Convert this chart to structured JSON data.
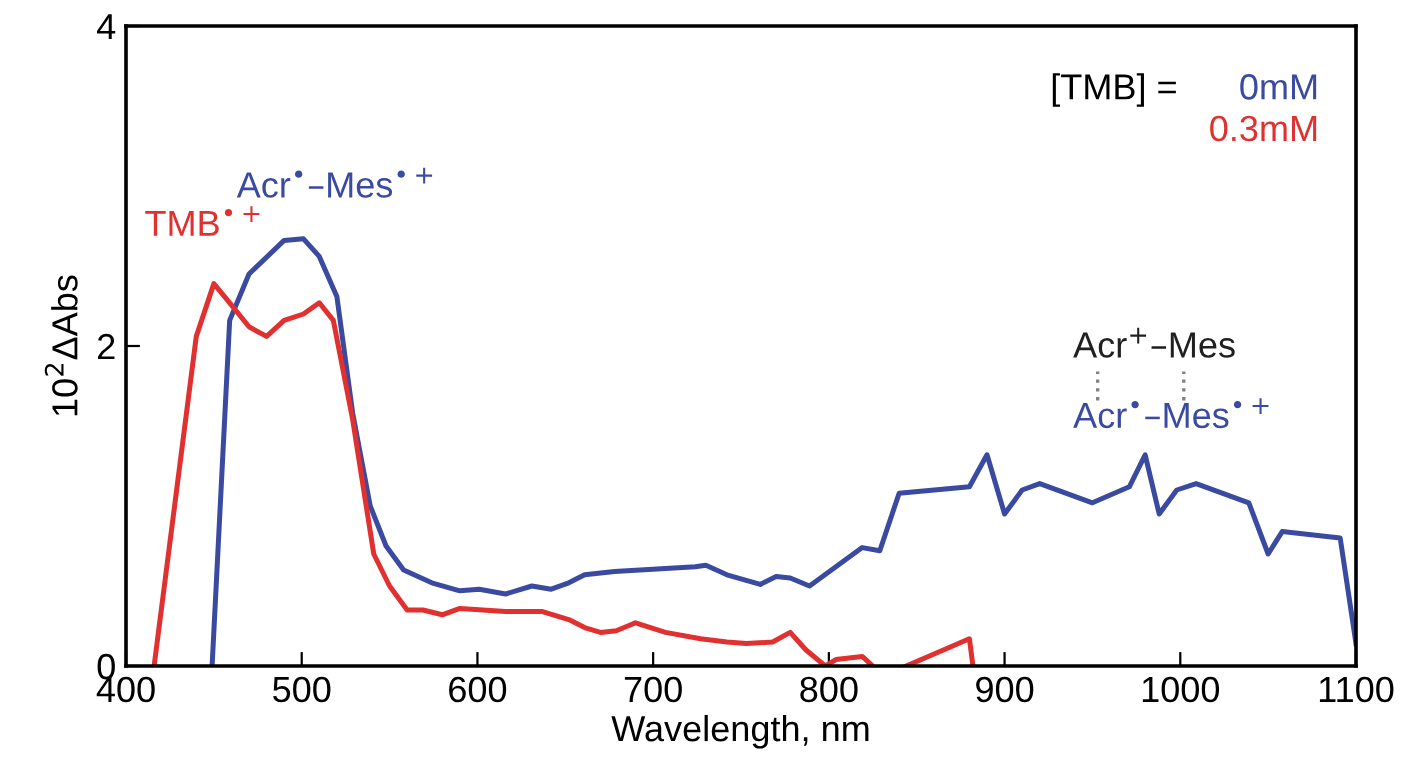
{
  "chart_data": {
    "type": "line",
    "xlabel": "Wavelength, nm",
    "ylabel": "10$^{2}$ΔAbs",
    "xlim": [
      400,
      1100
    ],
    "xticks": [
      400,
      500,
      600,
      700,
      800,
      900,
      1000,
      1100
    ],
    "ylim": [
      0,
      4
    ],
    "yticks": [
      0,
      2,
      4
    ],
    "grid": false,
    "legend": "top right",
    "legend_title": "[TMB] =",
    "marker": "none",
    "line_style": "solid",
    "series": [
      {
        "name": "0mM",
        "color": "#3a4aa0",
        "x": [
          449,
          459,
          470,
          490,
          501,
          510,
          520,
          529,
          539,
          548,
          558,
          574,
          590,
          601,
          616,
          631,
          642,
          652,
          661,
          678,
          724,
          730,
          742,
          761,
          770,
          778,
          789,
          804,
          819,
          829,
          840,
          880,
          890,
          900,
          910,
          920,
          950,
          971,
          980,
          988,
          998,
          1009,
          1039,
          1050,
          1058,
          1091,
          1100
        ],
        "values": [
          0,
          2.16,
          2.45,
          2.66,
          2.67,
          2.56,
          2.31,
          1.58,
          1.0,
          0.75,
          0.6,
          0.52,
          0.47,
          0.48,
          0.45,
          0.5,
          0.48,
          0.52,
          0.57,
          0.59,
          0.62,
          0.63,
          0.57,
          0.51,
          0.56,
          0.55,
          0.5,
          0.62,
          0.74,
          0.72,
          1.08,
          1.12,
          1.32,
          0.95,
          1.1,
          1.14,
          1.02,
          1.12,
          1.32,
          0.95,
          1.1,
          1.14,
          1.02,
          0.7,
          0.84,
          0.8,
          0.14
        ]
      },
      {
        "name": "0.3mM",
        "color": "#e03030",
        "x": [
          416,
          440,
          450,
          459,
          470,
          480,
          490,
          501,
          510,
          518,
          529,
          541,
          550,
          560,
          569,
          580,
          590,
          616,
          637,
          652,
          661,
          670,
          679,
          690,
          707,
          727,
          742,
          753,
          768,
          778,
          787,
          798,
          804,
          819,
          825,
          835,
          844,
          880,
          882
        ],
        "values": [
          0,
          2.06,
          2.39,
          2.27,
          2.12,
          2.06,
          2.16,
          2.2,
          2.27,
          2.16,
          1.54,
          0.7,
          0.5,
          0.35,
          0.35,
          0.32,
          0.36,
          0.34,
          0.34,
          0.29,
          0.24,
          0.21,
          0.22,
          0.27,
          0.21,
          0.17,
          0.15,
          0.14,
          0.15,
          0.21,
          0.1,
          0,
          0.04,
          0.06,
          0,
          null,
          0,
          0.17,
          0
        ]
      }
    ],
    "annotations": [
      "TMB$^{•+}$",
      "Acr$^{•}$–Mes$^{•+}$",
      "Acr$^{+}$–Mes",
      "Acr$^{•}$–Mes$^{•+}$"
    ]
  }
}
